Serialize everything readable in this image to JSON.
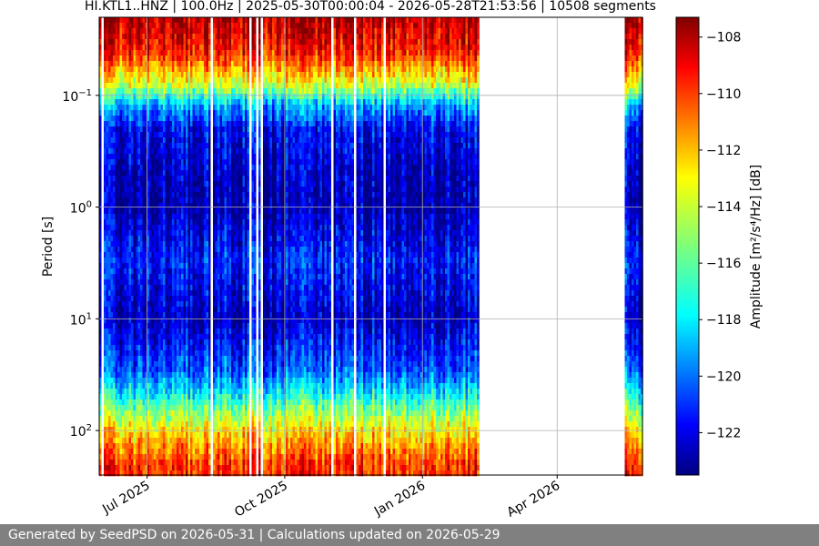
{
  "chart_data": {
    "type": "heatmap",
    "title": "HI.KTL1..HNZ | 100.0Hz | 2025-05-30T00:00:04 - 2026-05-28T21:53:56 | 10508 segments",
    "xlabel": "",
    "ylabel": "Period [s]",
    "x_range": [
      "2025-05-30",
      "2026-05-28"
    ],
    "x_ticks": [
      {
        "date": "2025-07-01",
        "label": "Jul 2025"
      },
      {
        "date": "2025-10-01",
        "label": "Oct 2025"
      },
      {
        "date": "2026-01-01",
        "label": "Jan 2026"
      },
      {
        "date": "2026-04-01",
        "label": "Apr 2026"
      }
    ],
    "y_scale": "log",
    "y_inverted": true,
    "y_range": [
      0.02,
      250
    ],
    "y_ticks": [
      {
        "value": 0.1,
        "base": "10",
        "exp": "−1"
      },
      {
        "value": 1,
        "base": "10",
        "exp": "0"
      },
      {
        "value": 10,
        "base": "10",
        "exp": "1"
      },
      {
        "value": 100,
        "base": "10",
        "exp": "2"
      }
    ],
    "data_gaps": [
      [
        "2026-02-07",
        "2026-05-15"
      ]
    ],
    "colormap": "jet",
    "colorbar": {
      "label": "Amplitude [m²/s⁴/Hz] [dB]",
      "min": -123.5,
      "max": -107.3,
      "ticks": [
        "−108",
        "−110",
        "−112",
        "−114",
        "−116",
        "−118",
        "−120",
        "−122"
      ]
    },
    "amplitude_profile_by_period": [
      {
        "period": 0.02,
        "db": -108
      },
      {
        "period": 0.04,
        "db": -109.5
      },
      {
        "period": 0.08,
        "db": -114
      },
      {
        "period": 0.12,
        "db": -118.5
      },
      {
        "period": 0.2,
        "db": -121.5
      },
      {
        "period": 0.5,
        "db": -122.5
      },
      {
        "period": 1,
        "db": -122.8
      },
      {
        "period": 3,
        "db": -121
      },
      {
        "period": 10,
        "db": -122.5
      },
      {
        "period": 30,
        "db": -120
      },
      {
        "period": 60,
        "db": -116
      },
      {
        "period": 100,
        "db": -113
      },
      {
        "period": 200,
        "db": -110
      }
    ],
    "grid": true
  },
  "footer": {
    "text": "Generated by SeedPSD on 2026-05-31 | Calculations updated on 2026-05-29"
  }
}
